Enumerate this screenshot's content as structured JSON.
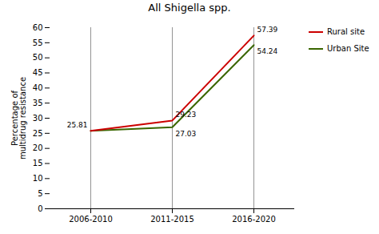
{
  "chart_data": {
    "type": "line",
    "title": "All Shigella spp.",
    "categories": [
      "2006-2010",
      "2011-2015",
      "2016-2020"
    ],
    "series": [
      {
        "name": "Rural site",
        "color": "#cc0000",
        "values": [
          25.81,
          29.23,
          57.39
        ]
      },
      {
        "name": "Urban Site",
        "color": "#3a6600",
        "values": [
          25.81,
          27.03,
          54.24
        ],
        "value_labels": [
          null,
          "27.03",
          "54.24"
        ]
      }
    ],
    "ylabel": "Percentage of\nmultidrug resistance",
    "ylim": [
      0,
      60
    ],
    "yticks": [
      0,
      5,
      10,
      15,
      20,
      25,
      30,
      35,
      40,
      45,
      50,
      55,
      60
    ],
    "grid": "x",
    "legend": "right",
    "data_labels": true
  }
}
